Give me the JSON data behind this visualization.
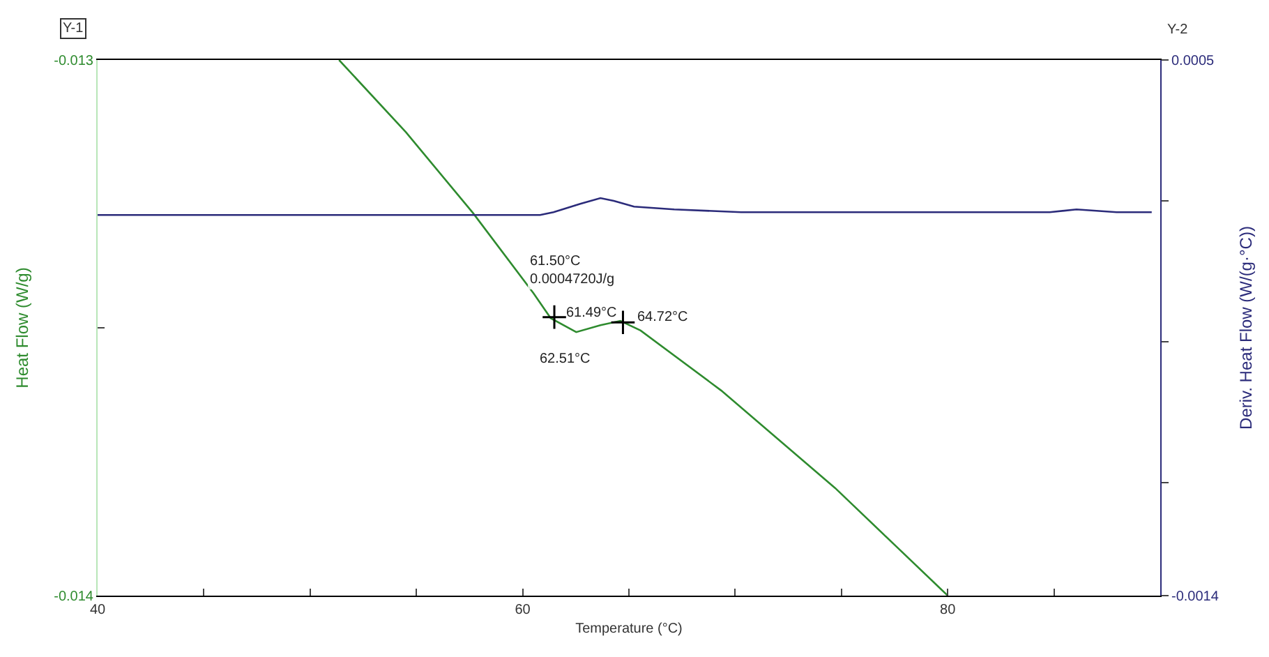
{
  "chart_data": {
    "type": "line",
    "xlabel": "Temperature (°C)",
    "ylabel": "Heat Flow (W/g)",
    "y2label": "Deriv. Heat Flow (W/(g·°C))",
    "xlim": [
      40,
      90
    ],
    "xticks": [
      40,
      {
        "value": 45,
        "label": null
      },
      {
        "value": 50,
        "label": null
      },
      {
        "value": 55,
        "label": null
      },
      60,
      {
        "value": 65,
        "label": null
      },
      {
        "value": 70,
        "label": null
      },
      {
        "value": 75,
        "label": null
      },
      80,
      {
        "value": 85,
        "label": null
      }
    ],
    "ylim": [
      -0.014,
      -0.013
    ],
    "yticks": [
      -0.014,
      {
        "value": -0.0135,
        "label": null
      },
      -0.013
    ],
    "y2lim": [
      -0.0014,
      0.0005
    ],
    "y2ticks": [
      -0.0014,
      {
        "value": -0.001,
        "label": null
      },
      {
        "value": -0.0005,
        "label": null
      },
      {
        "value": 0,
        "label": null
      },
      0.0005
    ],
    "marker": "none",
    "line_style": "solid",
    "series": [
      {
        "color": "#2e8b2e",
        "x": [
          51.36,
          54.51,
          57.67,
          60.5,
          61.32,
          62.52,
          63.66,
          64.6,
          65.55,
          69.34,
          74.7,
          80.0
        ],
        "values": [
          -0.013,
          -0.013135,
          -0.013286,
          -0.013435,
          -0.013482,
          -0.013508,
          -0.013495,
          -0.013487,
          -0.013505,
          -0.013617,
          -0.013799,
          -0.014
        ]
      },
      {
        "color": "#2b2b7a",
        "axis": "y2",
        "x": [
          40,
          48.2,
          54.51,
          60.82,
          61.45,
          62.71,
          63.66,
          64.29,
          65.24,
          67.13,
          70.28,
          79.75,
          84.8,
          86.06,
          87.95,
          89.6
        ],
        "values": [
          -5e-05,
          -5e-05,
          -5e-05,
          -5e-05,
          -4e-05,
          -1e-05,
          1e-05,
          0.0,
          -2e-05,
          -3e-05,
          -4e-05,
          -4e-05,
          -4e-05,
          -3e-05,
          -4e-05,
          -4e-05
        ]
      },
      {
        "type": "scatter",
        "marker": "cross",
        "color": "#000000",
        "x": [
          61.49,
          64.72
        ],
        "values": [
          -0.01348,
          -0.01349
        ]
      }
    ],
    "annotations": [
      "Y-1",
      "Y-2",
      {
        "text": "61.50°C\n0.0004720J/g",
        "x": 61.5,
        "y": -0.01345
      },
      {
        "text": "61.49°C",
        "x": 61.49,
        "y": -0.01348
      },
      {
        "text": "64.72°C",
        "x": 64.72,
        "y": -0.01349
      },
      {
        "text": "62.51°C",
        "x": 62.51,
        "y": -0.013508
      }
    ]
  }
}
